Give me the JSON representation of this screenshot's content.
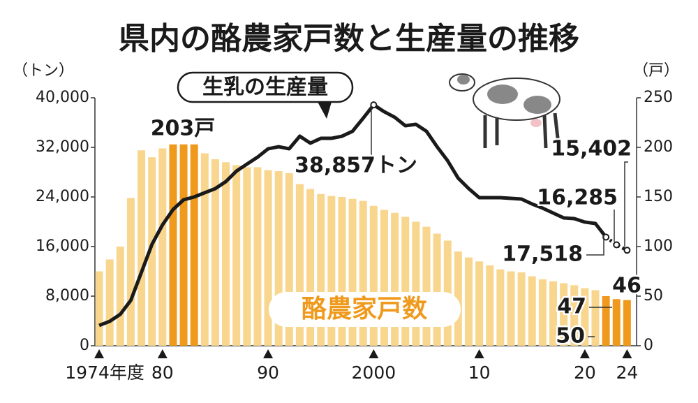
{
  "chart_data": {
    "type": "bar_line",
    "title": "県内の酪農家戸数と生産量の推移",
    "y_label": "（トン）",
    "y2_label": "（戸）",
    "x": [
      1974,
      1975,
      1976,
      1977,
      1978,
      1979,
      1980,
      1981,
      1982,
      1983,
      1984,
      1985,
      1986,
      1987,
      1988,
      1989,
      1990,
      1991,
      1992,
      1993,
      1994,
      1995,
      1996,
      1997,
      1998,
      1999,
      2000,
      2001,
      2002,
      2003,
      2004,
      2005,
      2006,
      2007,
      2008,
      2009,
      2010,
      2011,
      2012,
      2013,
      2014,
      2015,
      2016,
      2017,
      2018,
      2019,
      2020,
      2021,
      2022,
      2023,
      2024
    ],
    "xlim": [
      1973.6,
      2024.9
    ],
    "xticks": [
      {
        "value": 1974,
        "label": "1974年度"
      },
      {
        "value": 1980,
        "label": "80"
      },
      {
        "value": 1990,
        "label": "90"
      },
      2000,
      {
        "value": 2010,
        "label": "10"
      },
      {
        "value": 2020,
        "label": "20"
      },
      {
        "value": 2024,
        "label": "24"
      }
    ],
    "ylim": [
      0,
      40000
    ],
    "yticks": [
      0,
      {
        "value": 8000,
        "label": "8,000"
      },
      {
        "value": 16000,
        "label": "16,000"
      },
      {
        "value": 24000,
        "label": "24,000"
      },
      {
        "value": 32000,
        "label": "32,000"
      },
      {
        "value": 40000,
        "label": "40,000"
      }
    ],
    "y2lim": [
      0,
      250
    ],
    "y2ticks": [
      0,
      50,
      100,
      150,
      200,
      250
    ],
    "series": [
      {
        "name": "酪農家戸数",
        "type": "bar",
        "axis": "y2",
        "color": "#f8d68e",
        "highlight_color": "#ef9a1c",
        "highlighted": [
          1981,
          1982,
          1983,
          2022,
          2023,
          2024
        ],
        "values": [
          75,
          87,
          100,
          149,
          197,
          190,
          199,
          203,
          203,
          203,
          194,
          188,
          185,
          182,
          180,
          180,
          177,
          176,
          174,
          163,
          158,
          153,
          151,
          150,
          148,
          146,
          141,
          137,
          134,
          130,
          125,
          120,
          113,
          106,
          95,
          89,
          85,
          81,
          77,
          75,
          74,
          70,
          67,
          65,
          63,
          61,
          58,
          56,
          50,
          47,
          46
        ],
        "value_labels": [
          null,
          null,
          null,
          null,
          null,
          null,
          null,
          "203戸",
          null,
          null,
          null,
          null,
          null,
          null,
          null,
          null,
          null,
          null,
          null,
          null,
          null,
          null,
          null,
          null,
          null,
          null,
          null,
          null,
          null,
          null,
          null,
          null,
          null,
          null,
          null,
          null,
          null,
          null,
          null,
          null,
          null,
          null,
          null,
          null,
          null,
          null,
          null,
          null,
          "50",
          "47",
          "46"
        ]
      },
      {
        "name": "生乳の生産量",
        "type": "line",
        "axis": "y",
        "color": "#1a1a1a",
        "values": [
          3270,
          3940,
          5070,
          7320,
          11830,
          16340,
          19500,
          21970,
          23550,
          24000,
          24680,
          25350,
          26480,
          28170,
          29300,
          30420,
          31770,
          32110,
          31770,
          33800,
          32680,
          33460,
          33460,
          33800,
          34600,
          36700,
          38857,
          37750,
          36850,
          35490,
          35720,
          34600,
          32110,
          29860,
          27040,
          25350,
          23890,
          23890,
          23890,
          23770,
          23660,
          22870,
          22200,
          21410,
          20620,
          20510,
          19950,
          19720,
          17518,
          16285,
          15402
        ],
        "value_labels": [
          null,
          null,
          null,
          null,
          null,
          null,
          null,
          null,
          null,
          null,
          null,
          null,
          null,
          null,
          null,
          null,
          null,
          null,
          null,
          null,
          null,
          null,
          null,
          null,
          null,
          null,
          "38,857トン",
          null,
          null,
          null,
          null,
          null,
          null,
          null,
          null,
          null,
          null,
          null,
          null,
          null,
          null,
          null,
          null,
          null,
          null,
          null,
          null,
          null,
          "17,518",
          "16,285",
          "15,402"
        ]
      }
    ]
  }
}
